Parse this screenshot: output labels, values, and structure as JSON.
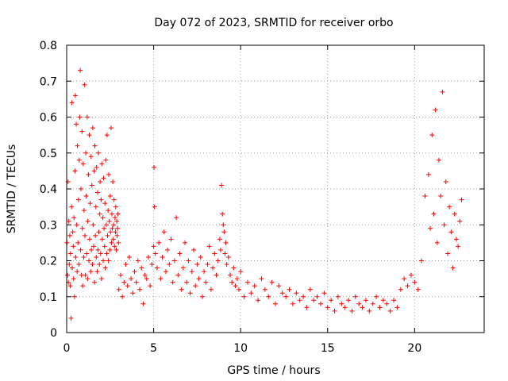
{
  "chart_data": {
    "type": "scatter",
    "title": "Day 072 of 2023, SRMTID for receiver orbo",
    "xlabel": "GPS time / hours",
    "ylabel": "SRMTID / TECUs",
    "xlim": [
      0,
      24
    ],
    "ylim": [
      0,
      0.8
    ],
    "xticks": [
      0,
      5,
      10,
      15,
      20
    ],
    "xtick_labels": [
      "0",
      "5",
      "10",
      "15",
      "20"
    ],
    "yticks": [
      0,
      0.1,
      0.2,
      0.3,
      0.4,
      0.5,
      0.6,
      0.7,
      0.8
    ],
    "ytick_labels": [
      "0",
      "0.1",
      "0.2",
      "0.3",
      "0.4",
      "0.5",
      "0.6",
      "0.7",
      "0.8"
    ],
    "grid": true,
    "marker": "plus",
    "color": "#ff0000",
    "series": [
      {
        "name": "orbo",
        "x": [
          0.02,
          0.05,
          0.08,
          0.1,
          0.12,
          0.15,
          0.18,
          0.2,
          0.22,
          0.25,
          0.28,
          0.3,
          0.32,
          0.35,
          0.38,
          0.4,
          0.42,
          0.45,
          0.48,
          0.5,
          0.52,
          0.55,
          0.58,
          0.6,
          0.62,
          0.65,
          0.68,
          0.7,
          0.72,
          0.75,
          0.78,
          0.8,
          0.82,
          0.85,
          0.88,
          0.9,
          0.92,
          0.95,
          0.98,
          1.0,
          1.02,
          1.05,
          1.08,
          1.1,
          1.12,
          1.15,
          1.18,
          1.2,
          1.22,
          1.25,
          1.28,
          1.3,
          1.32,
          1.35,
          1.38,
          1.4,
          1.42,
          1.45,
          1.48,
          1.5,
          1.52,
          1.55,
          1.58,
          1.6,
          1.62,
          1.65,
          1.68,
          1.7,
          1.72,
          1.75,
          1.78,
          1.8,
          1.82,
          1.85,
          1.88,
          1.9,
          1.92,
          1.95,
          1.98,
          2.0,
          2.02,
          2.05,
          2.08,
          2.1,
          2.12,
          2.15,
          2.18,
          2.2,
          2.22,
          2.25,
          2.28,
          2.3,
          2.32,
          2.35,
          2.38,
          2.4,
          2.42,
          2.45,
          2.48,
          2.5,
          2.52,
          2.55,
          2.58,
          2.6,
          2.62,
          2.65,
          2.68,
          2.7,
          2.72,
          2.75,
          2.78,
          2.8,
          2.82,
          2.85,
          2.88,
          2.9,
          2.92,
          2.95,
          2.98,
          3.0,
          3.1,
          3.2,
          3.3,
          3.4,
          3.5,
          3.6,
          3.7,
          3.8,
          3.9,
          4.0,
          4.1,
          4.2,
          4.3,
          4.4,
          4.5,
          4.6,
          4.7,
          4.8,
          4.9,
          5.0,
          5.02,
          5.05,
          5.1,
          5.2,
          5.3,
          5.4,
          5.5,
          5.6,
          5.7,
          5.8,
          5.9,
          6.0,
          6.1,
          6.2,
          6.3,
          6.4,
          6.5,
          6.6,
          6.7,
          6.8,
          6.9,
          7.0,
          7.1,
          7.2,
          7.3,
          7.4,
          7.5,
          7.6,
          7.7,
          7.8,
          7.9,
          8.0,
          8.1,
          8.2,
          8.3,
          8.4,
          8.5,
          8.6,
          8.7,
          8.8,
          8.85,
          8.9,
          8.95,
          9.0,
          9.05,
          9.1,
          9.15,
          9.2,
          9.3,
          9.4,
          9.5,
          9.6,
          9.7,
          9.8,
          9.9,
          10.0,
          10.2,
          10.4,
          10.6,
          10.8,
          11.0,
          11.2,
          11.4,
          11.6,
          11.8,
          12.0,
          12.2,
          12.4,
          12.6,
          12.8,
          13.0,
          13.2,
          13.4,
          13.6,
          13.8,
          14.0,
          14.2,
          14.4,
          14.6,
          14.8,
          15.0,
          15.2,
          15.4,
          15.6,
          15.8,
          16.0,
          16.2,
          16.4,
          16.6,
          16.8,
          17.0,
          17.2,
          17.4,
          17.6,
          17.8,
          18.0,
          18.2,
          18.4,
          18.6,
          18.8,
          19.0,
          19.2,
          19.4,
          19.6,
          19.8,
          20.0,
          20.2,
          20.4,
          20.6,
          20.8,
          20.9,
          21.0,
          21.1,
          21.2,
          21.3,
          21.4,
          21.5,
          21.6,
          21.7,
          21.8,
          21.9,
          22.0,
          22.1,
          22.2,
          22.3,
          22.4,
          22.5,
          22.6,
          22.7
        ],
        "y": [
          0.25,
          0.16,
          0.42,
          0.14,
          0.31,
          0.19,
          0.27,
          0.13,
          0.22,
          0.04,
          0.35,
          0.64,
          0.18,
          0.28,
          0.24,
          0.15,
          0.32,
          0.1,
          0.45,
          0.66,
          0.21,
          0.58,
          0.3,
          0.17,
          0.52,
          0.25,
          0.37,
          0.19,
          0.48,
          0.6,
          0.73,
          0.23,
          0.4,
          0.16,
          0.56,
          0.29,
          0.13,
          0.47,
          0.21,
          0.34,
          0.69,
          0.27,
          0.16,
          0.5,
          0.38,
          0.22,
          0.6,
          0.15,
          0.31,
          0.44,
          0.2,
          0.55,
          0.26,
          0.36,
          0.17,
          0.49,
          0.23,
          0.41,
          0.19,
          0.57,
          0.3,
          0.24,
          0.45,
          0.14,
          0.52,
          0.27,
          0.35,
          0.21,
          0.46,
          0.17,
          0.39,
          0.23,
          0.5,
          0.28,
          0.19,
          0.33,
          0.42,
          0.22,
          0.37,
          0.15,
          0.47,
          0.26,
          0.32,
          0.2,
          0.43,
          0.29,
          0.24,
          0.36,
          0.18,
          0.48,
          0.3,
          0.22,
          0.55,
          0.27,
          0.34,
          0.2,
          0.44,
          0.31,
          0.23,
          0.38,
          0.28,
          0.57,
          0.25,
          0.33,
          0.29,
          0.42,
          0.26,
          0.3,
          0.37,
          0.24,
          0.32,
          0.28,
          0.35,
          0.23,
          0.31,
          0.27,
          0.29,
          0.33,
          0.25,
          0.12,
          0.16,
          0.1,
          0.14,
          0.19,
          0.13,
          0.21,
          0.15,
          0.11,
          0.17,
          0.14,
          0.2,
          0.12,
          0.18,
          0.08,
          0.16,
          0.15,
          0.21,
          0.13,
          0.19,
          0.24,
          0.46,
          0.35,
          0.22,
          0.18,
          0.25,
          0.15,
          0.21,
          0.28,
          0.17,
          0.23,
          0.19,
          0.26,
          0.14,
          0.2,
          0.32,
          0.16,
          0.22,
          0.12,
          0.18,
          0.25,
          0.14,
          0.2,
          0.11,
          0.17,
          0.23,
          0.13,
          0.19,
          0.15,
          0.21,
          0.1,
          0.17,
          0.14,
          0.19,
          0.24,
          0.12,
          0.18,
          0.22,
          0.16,
          0.2,
          0.26,
          0.23,
          0.41,
          0.33,
          0.3,
          0.28,
          0.22,
          0.25,
          0.19,
          0.21,
          0.16,
          0.14,
          0.18,
          0.13,
          0.15,
          0.12,
          0.17,
          0.1,
          0.14,
          0.11,
          0.13,
          0.09,
          0.15,
          0.12,
          0.1,
          0.14,
          0.08,
          0.13,
          0.11,
          0.1,
          0.12,
          0.08,
          0.11,
          0.09,
          0.1,
          0.07,
          0.12,
          0.09,
          0.1,
          0.08,
          0.11,
          0.07,
          0.09,
          0.06,
          0.1,
          0.08,
          0.07,
          0.09,
          0.06,
          0.1,
          0.08,
          0.07,
          0.09,
          0.06,
          0.08,
          0.1,
          0.07,
          0.09,
          0.08,
          0.06,
          0.09,
          0.07,
          0.12,
          0.15,
          0.13,
          0.16,
          0.14,
          0.12,
          0.2,
          0.38,
          0.44,
          0.29,
          0.55,
          0.33,
          0.62,
          0.25,
          0.48,
          0.38,
          0.67,
          0.3,
          0.42,
          0.22,
          0.35,
          0.28,
          0.18,
          0.33,
          0.26,
          0.24,
          0.31,
          0.37
        ]
      }
    ]
  }
}
